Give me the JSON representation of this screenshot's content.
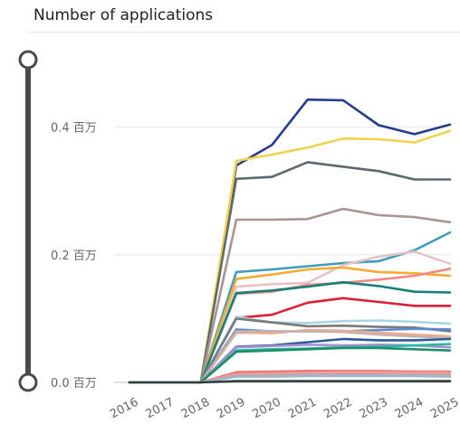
{
  "header": {
    "title": "Number of applications"
  },
  "chart_data": {
    "type": "line",
    "title": "Number of applications",
    "x": [
      2016,
      2017,
      2018,
      2019,
      2020,
      2021,
      2022,
      2023,
      2024,
      2025
    ],
    "xtick_labels": [
      "2016",
      "2017",
      "2018",
      "2019",
      "2020",
      "2021",
      "2022",
      "2023",
      "2024",
      "2025"
    ],
    "yticks": [
      {
        "value": 0.0,
        "label": "0.0 百万"
      },
      {
        "value": 0.2,
        "label": "0.2 百万"
      },
      {
        "value": 0.4,
        "label": "0.4 百万"
      }
    ],
    "ylim": [
      0,
      0.5
    ],
    "grid": true,
    "series": [
      {
        "color": "#253d8f",
        "values": [
          0,
          0,
          0,
          0.34,
          0.372,
          0.443,
          0.442,
          0.403,
          0.389,
          0.404
        ]
      },
      {
        "color": "#f2d24b",
        "values": [
          0,
          0,
          0,
          0.347,
          0.357,
          0.368,
          0.382,
          0.381,
          0.376,
          0.394
        ]
      },
      {
        "color": "#5b6a6a",
        "values": [
          0,
          0,
          0,
          0.319,
          0.322,
          0.345,
          0.338,
          0.331,
          0.318,
          0.318
        ]
      },
      {
        "color": "#a99393",
        "values": [
          0,
          0,
          0,
          0.255,
          0.255,
          0.256,
          0.272,
          0.262,
          0.259,
          0.251
        ]
      },
      {
        "color": "#3d9dbb",
        "values": [
          0,
          0,
          0,
          0.173,
          0.177,
          0.182,
          0.187,
          0.19,
          0.207,
          0.235
        ]
      },
      {
        "color": "#e8c1c7",
        "values": [
          0,
          0,
          0,
          0.15,
          0.154,
          0.156,
          0.184,
          0.197,
          0.205,
          0.186
        ]
      },
      {
        "color": "#f3ac31",
        "values": [
          0,
          0,
          0,
          0.162,
          0.169,
          0.177,
          0.18,
          0.173,
          0.171,
          0.167
        ]
      },
      {
        "color": "#f48a7f",
        "values": [
          0,
          0,
          0,
          0.139,
          0.142,
          0.153,
          0.156,
          0.161,
          0.167,
          0.178
        ]
      },
      {
        "color": "#168078",
        "values": [
          0,
          0,
          0,
          0.14,
          0.144,
          0.15,
          0.157,
          0.151,
          0.142,
          0.141
        ]
      },
      {
        "color": "#dd1f37",
        "values": [
          0,
          0,
          0,
          0.101,
          0.106,
          0.125,
          0.132,
          0.126,
          0.12,
          0.12
        ]
      },
      {
        "color": "#a8d6e6",
        "values": [
          0,
          0,
          0,
          0.103,
          0.094,
          0.093,
          0.096,
          0.097,
          0.095,
          0.092
        ]
      },
      {
        "color": "#7a7a7a",
        "values": [
          0,
          0,
          0,
          0.1,
          0.094,
          0.088,
          0.089,
          0.087,
          0.086,
          0.08
        ]
      },
      {
        "color": "#5a8bd0",
        "values": [
          0,
          0,
          0,
          0.083,
          0.08,
          0.08,
          0.08,
          0.082,
          0.084,
          0.083
        ]
      },
      {
        "color": "#f6a888",
        "values": [
          0,
          0,
          0,
          0.078,
          0.077,
          0.082,
          0.081,
          0.078,
          0.075,
          0.072
        ]
      },
      {
        "color": "#c4b3ad",
        "values": [
          0,
          0,
          0,
          0.08,
          0.08,
          0.08,
          0.079,
          0.075,
          0.072,
          0.07
        ]
      },
      {
        "color": "#2c5a99",
        "values": [
          0,
          0,
          0,
          0.056,
          0.058,
          0.063,
          0.068,
          0.066,
          0.066,
          0.068
        ]
      },
      {
        "color": "#a88fd1",
        "values": [
          0,
          0,
          0,
          0.055,
          0.057,
          0.059,
          0.058,
          0.059,
          0.058,
          0.055
        ]
      },
      {
        "color": "#28b8a8",
        "values": [
          0,
          0,
          0,
          0.05,
          0.052,
          0.053,
          0.055,
          0.056,
          0.058,
          0.06
        ]
      },
      {
        "color": "#1f8e6a",
        "values": [
          0,
          0,
          0,
          0.048,
          0.05,
          0.052,
          0.054,
          0.054,
          0.052,
          0.05
        ]
      },
      {
        "color": "#f47272",
        "values": [
          0,
          0,
          0,
          0.016,
          0.017,
          0.018,
          0.018,
          0.018,
          0.017,
          0.017
        ]
      },
      {
        "color": "#f39a9a",
        "values": [
          0,
          0,
          0,
          0.013,
          0.014,
          0.015,
          0.016,
          0.016,
          0.015,
          0.015
        ]
      },
      {
        "color": "#c9a7a7",
        "values": [
          0,
          0,
          0,
          0.011,
          0.012,
          0.013,
          0.013,
          0.013,
          0.012,
          0.012
        ]
      },
      {
        "color": "#9bb7cc",
        "values": [
          0,
          0,
          0,
          0.009,
          0.009,
          0.01,
          0.01,
          0.01,
          0.01,
          0.009
        ]
      },
      {
        "color": "#2f3f3f",
        "values": [
          0,
          0,
          0,
          0.002,
          0.002,
          0.002,
          0.002,
          0.002,
          0.002,
          0.002
        ]
      }
    ]
  }
}
